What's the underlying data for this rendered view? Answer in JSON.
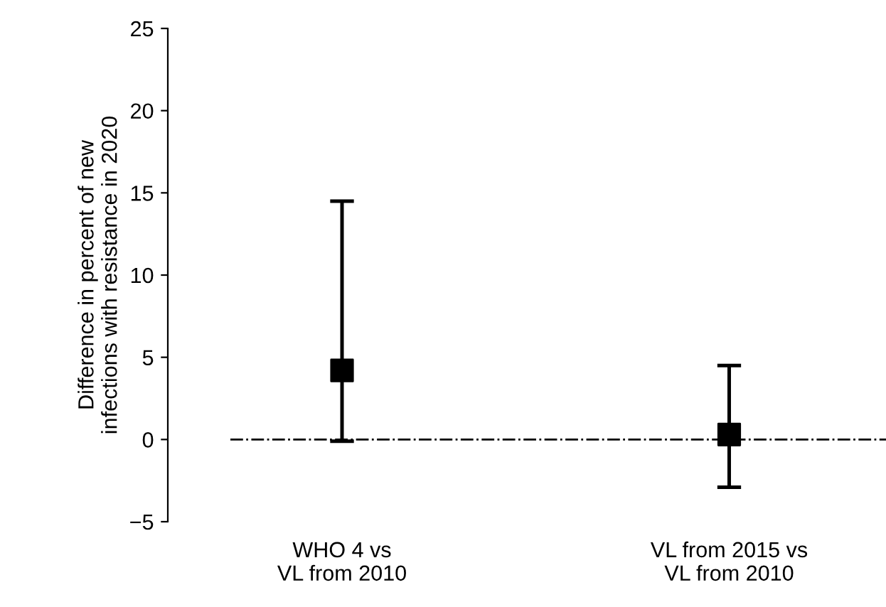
{
  "chart_data": {
    "type": "scatter",
    "ylabel": "Difference in percent of new\ninfections with resistance in 2020",
    "categories": [
      "WHO 4 vs\nVL from 2010",
      "VL from 2015 vs\nVL from 2010"
    ],
    "series": [
      {
        "color": "#000000",
        "values": [
          4.2,
          0.3
        ],
        "errors": [
          [
            -0.1,
            14.5
          ],
          [
            -2.9,
            4.5
          ]
        ]
      }
    ],
    "marker": "square",
    "ylim": [
      -5,
      25
    ],
    "yticks": [
      {
        "value": -5,
        "label": "−5"
      },
      0,
      5,
      10,
      15,
      20,
      25
    ],
    "ref_lines": [
      {
        "axis": "y",
        "value": 0,
        "color": "#000000",
        "line_style": "dashdot"
      }
    ],
    "grid": false,
    "legend": false
  }
}
